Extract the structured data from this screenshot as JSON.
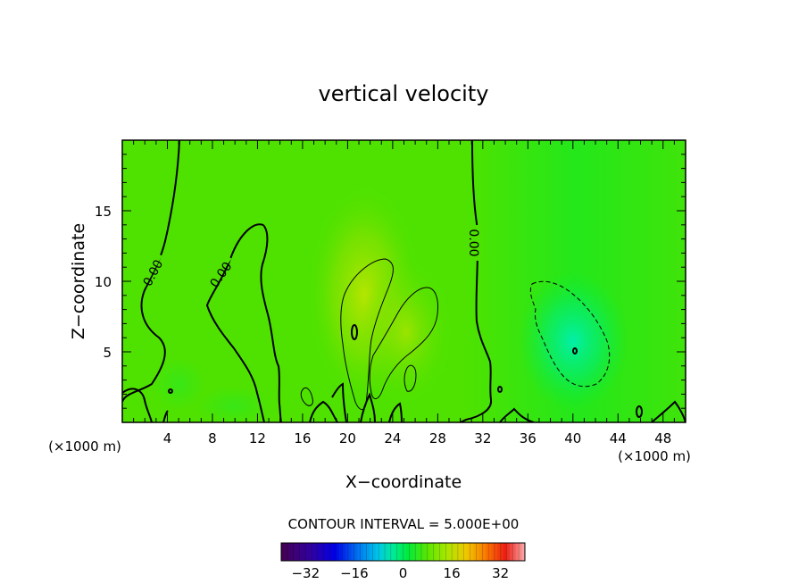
{
  "chart_data": {
    "type": "heatmap",
    "title": "vertical velocity",
    "xlabel": "X−coordinate",
    "ylabel": "Z−coordinate",
    "x_unit_left": "(×1000 m)",
    "x_unit_right": "(×1000 m)",
    "xlim": [
      0,
      50
    ],
    "ylim": [
      0,
      20
    ],
    "x_ticks": [
      4,
      8,
      12,
      16,
      20,
      24,
      28,
      32,
      36,
      40,
      44,
      48
    ],
    "y_ticks": [
      5,
      10,
      15
    ],
    "contour_interval_text": "CONTOUR INTERVAL = 5.000E+00",
    "contour_label": "0.00",
    "colorbar": {
      "min": -40,
      "max": 40,
      "ticks": [
        -32,
        -16,
        0,
        16,
        32
      ],
      "tick_labels": [
        "−32",
        "−16",
        "0",
        "16",
        "32"
      ]
    },
    "features": [
      {
        "kind": "updraft",
        "x": 21,
        "z": 7,
        "peak": 8
      },
      {
        "kind": "updraft",
        "x": 25,
        "z": 6,
        "peak": 6
      },
      {
        "kind": "downdraft",
        "x": 40,
        "z": 5,
        "peak": -9
      }
    ]
  }
}
